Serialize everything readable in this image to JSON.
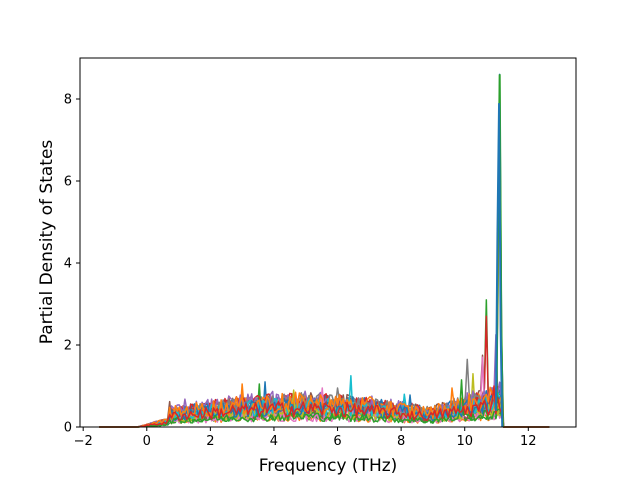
{
  "chart_data": {
    "type": "line",
    "title": "",
    "xlabel": "Frequency (THz)",
    "ylabel": "Partial Density of States",
    "xlim": [
      -2.1,
      13.5
    ],
    "ylim": [
      0,
      9.0
    ],
    "xticks": [
      -2,
      0,
      2,
      4,
      6,
      8,
      10,
      12
    ],
    "yticks": [
      0,
      2,
      4,
      6,
      8
    ],
    "xtick_labels": [
      "−2",
      "0",
      "2",
      "4",
      "6",
      "8",
      "10",
      "12"
    ],
    "ytick_labels": [
      "0",
      "2",
      "4",
      "6",
      "8"
    ],
    "grid": false,
    "legend": "none",
    "series_count": 24,
    "palette": [
      "#1f77b4",
      "#ff7f0e",
      "#2ca02c",
      "#d62728",
      "#9467bd",
      "#8c564b",
      "#e377c2",
      "#7f7f7f",
      "#bcbd22",
      "#17becf"
    ],
    "peaks": [
      {
        "x": 11.1,
        "y": 8.6,
        "color": "#2ca02c"
      },
      {
        "x": 11.08,
        "y": 7.9,
        "color": "#1f77b4"
      },
      {
        "x": 10.7,
        "y": 3.1,
        "color": "#8c564b"
      },
      {
        "x": 10.7,
        "y": 2.7,
        "color": "#ff7f0e"
      },
      {
        "x": 11.0,
        "y": 2.25,
        "color": "#1f77b4"
      },
      {
        "x": 10.55,
        "y": 1.75,
        "color": "#ff7f0e"
      },
      {
        "x": 10.55,
        "y": 1.7,
        "color": "#9467bd"
      },
      {
        "x": 10.1,
        "y": 1.65,
        "color": "#9467bd"
      },
      {
        "x": 10.25,
        "y": 1.3,
        "color": "#bcbd22"
      },
      {
        "x": 6.4,
        "y": 1.25,
        "color": "#8c564b"
      },
      {
        "x": 3.7,
        "y": 1.1,
        "color": "#17becf"
      },
      {
        "x": 3.0,
        "y": 1.05,
        "color": "#d62728"
      },
      {
        "x": 3.55,
        "y": 1.05,
        "color": "#2ca02c"
      },
      {
        "x": 2.6,
        "y": 0.75,
        "color": "#2ca02c"
      },
      {
        "x": 1.2,
        "y": 0.68,
        "color": "#9467bd"
      },
      {
        "x": 0.7,
        "y": 0.62,
        "color": "#8c564b"
      },
      {
        "x": 5.5,
        "y": 0.95,
        "color": "#1f77b4"
      },
      {
        "x": 6.0,
        "y": 0.95,
        "color": "#7f7f7f"
      },
      {
        "x": 4.6,
        "y": 0.9,
        "color": "#bcbd22"
      },
      {
        "x": 8.1,
        "y": 0.8,
        "color": "#d62728"
      },
      {
        "x": 8.3,
        "y": 0.78,
        "color": "#ff7f0e"
      },
      {
        "x": 9.6,
        "y": 0.95,
        "color": "#17becf"
      },
      {
        "x": 9.9,
        "y": 1.15,
        "color": "#e377c2"
      },
      {
        "x": 10.9,
        "y": 1.0,
        "color": "#17becf"
      }
    ],
    "x_range": {
      "start": -1.5,
      "end": 12.7
    }
  }
}
